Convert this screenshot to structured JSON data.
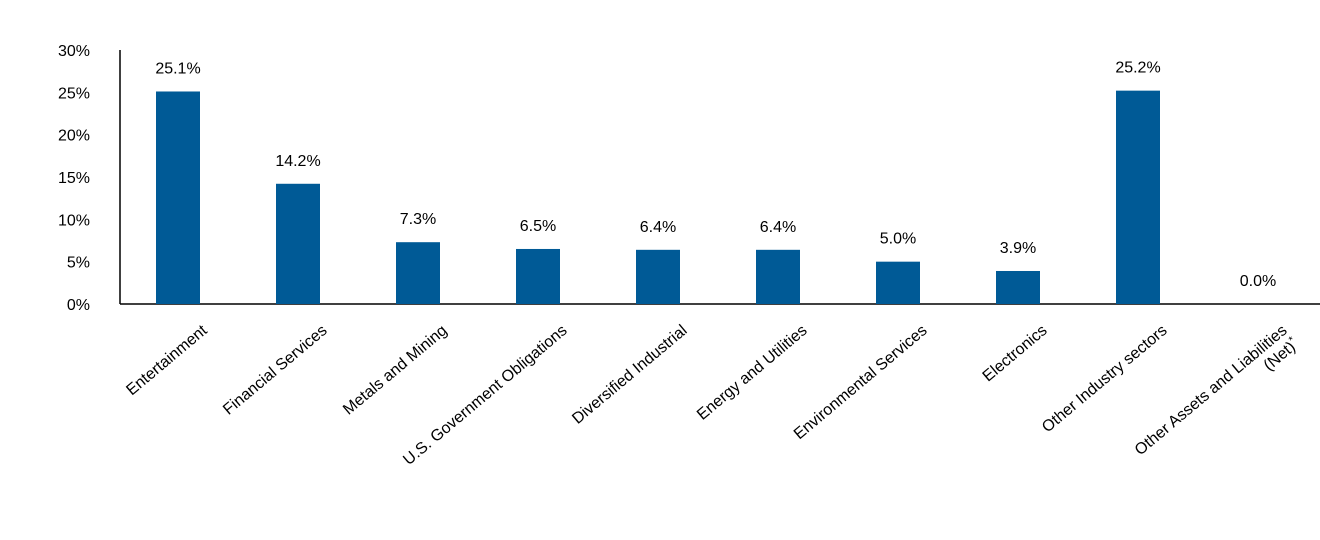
{
  "chart_data": {
    "type": "bar",
    "categories": [
      "Entertainment",
      "Financial Services",
      "Metals and Mining",
      "U.S. Government Obligations",
      "Diversified Industrial",
      "Energy and Utilities",
      "Environmental Services",
      "Electronics",
      "Other Industry sectors",
      "Other Assets and Liabilities (Net)*"
    ],
    "category_lines": [
      [
        "Entertainment"
      ],
      [
        "Financial Services"
      ],
      [
        "Metals and Mining"
      ],
      [
        "U.S. Government Obligations"
      ],
      [
        "Diversified Industrial"
      ],
      [
        "Energy and Utilities"
      ],
      [
        "Environmental Services"
      ],
      [
        "Electronics"
      ],
      [
        "Other Industry sectors"
      ],
      [
        "Other Assets and Liabilities",
        "(Net)*"
      ]
    ],
    "values": [
      25.1,
      14.2,
      7.3,
      6.5,
      6.4,
      6.4,
      5.0,
      3.9,
      25.2,
      0.0
    ],
    "data_labels": [
      "25.1%",
      "14.2%",
      "7.3%",
      "6.5%",
      "6.4%",
      "6.4%",
      "5.0%",
      "3.9%",
      "25.2%",
      "0.0%"
    ],
    "y_ticks": [
      0,
      5,
      10,
      15,
      20,
      25,
      30
    ],
    "y_tick_labels": [
      "0%",
      "5%",
      "10%",
      "15%",
      "20%",
      "25%",
      "30%"
    ],
    "ylim": [
      0,
      30
    ],
    "bar_color": "#005a96",
    "grid": false,
    "legend": "none"
  }
}
